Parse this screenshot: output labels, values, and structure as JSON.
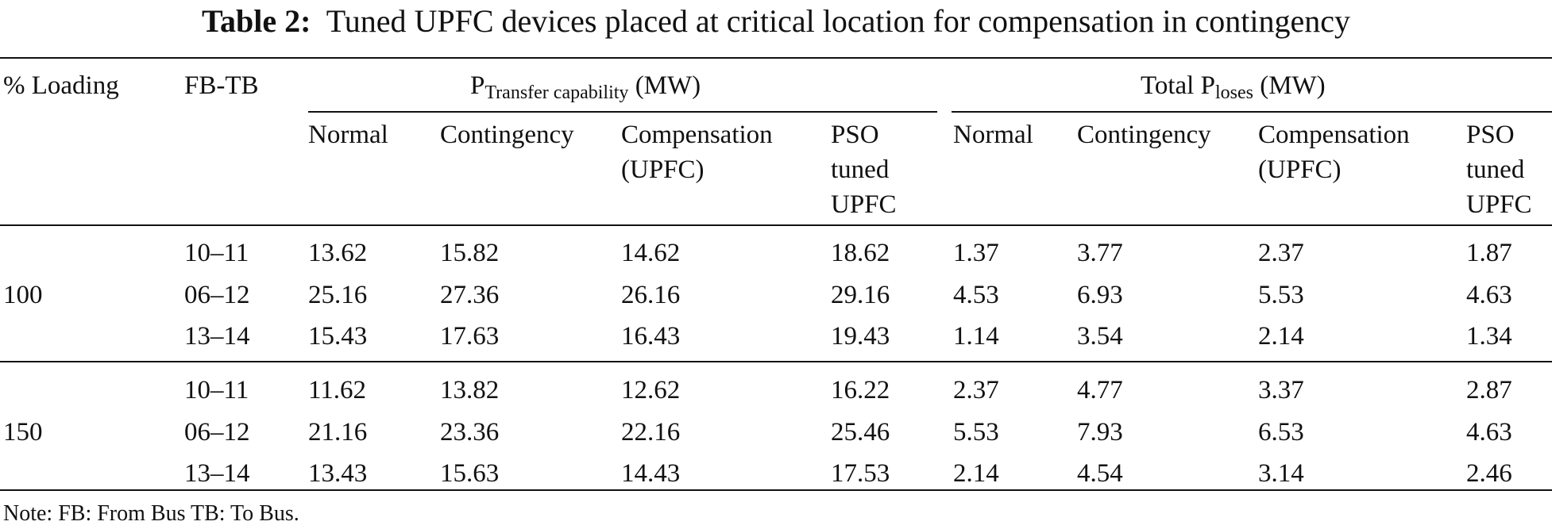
{
  "caption": {
    "label": "Table 2:",
    "text": "Tuned UPFC devices placed at critical location for compensation in contingency"
  },
  "columns": {
    "loading": "% Loading",
    "fbtb": "FB-TB",
    "transfer_group": {
      "main": "P",
      "sub": "Transfer capability",
      "unit": "(MW)"
    },
    "losses_group": {
      "prefix": "Total P",
      "sub": "loses",
      "unit": "(MW)"
    },
    "sub_columns": {
      "normal": "Normal",
      "contingency": "Contingency",
      "compensation_1": "Compensation",
      "compensation_2": "(UPFC)",
      "pso_1": "PSO",
      "pso_2": "tuned",
      "pso_3": "UPFC"
    }
  },
  "groups": [
    {
      "loading": "100",
      "rows": [
        {
          "fbtb": "10–11",
          "values": [
            "13.62",
            "15.82",
            "14.62",
            "18.62",
            "1.37",
            "3.77",
            "2.37",
            "1.87"
          ]
        },
        {
          "fbtb": "06–12",
          "values": [
            "25.16",
            "27.36",
            "26.16",
            "29.16",
            "4.53",
            "6.93",
            "5.53",
            "4.63"
          ]
        },
        {
          "fbtb": "13–14",
          "values": [
            "15.43",
            "17.63",
            "16.43",
            "19.43",
            "1.14",
            "3.54",
            "2.14",
            "1.34"
          ]
        }
      ]
    },
    {
      "loading": "150",
      "rows": [
        {
          "fbtb": "10–11",
          "values": [
            "11.62",
            "13.82",
            "12.62",
            "16.22",
            "2.37",
            "4.77",
            "3.37",
            "2.87"
          ]
        },
        {
          "fbtb": "06–12",
          "values": [
            "21.16",
            "23.36",
            "22.16",
            "25.46",
            "5.53",
            "7.93",
            "6.53",
            "4.63"
          ]
        },
        {
          "fbtb": "13–14",
          "values": [
            "13.43",
            "15.63",
            "14.43",
            "17.53",
            "2.14",
            "4.54",
            "3.14",
            "2.46"
          ]
        }
      ]
    }
  ],
  "note": "Note: FB: From Bus TB: To Bus."
}
